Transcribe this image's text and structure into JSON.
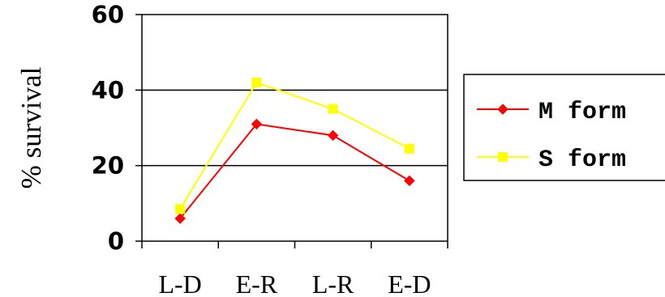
{
  "chart_data": {
    "type": "line",
    "categories": [
      "L-D",
      "E-R",
      "L-R",
      "E-D"
    ],
    "series": [
      {
        "name": "M form",
        "values": [
          6,
          31,
          28,
          16
        ],
        "color": "#ff0000",
        "marker": "diamond"
      },
      {
        "name": "S form",
        "values": [
          8.5,
          42,
          35,
          24.5
        ],
        "color": "#ffff00",
        "marker": "square"
      }
    ],
    "title": "",
    "xlabel": "",
    "ylabel": "% survival",
    "ylim": [
      0,
      60
    ],
    "yticks": [
      "0",
      "20",
      "40",
      "60"
    ],
    "grid": true,
    "legend_position": "right"
  }
}
